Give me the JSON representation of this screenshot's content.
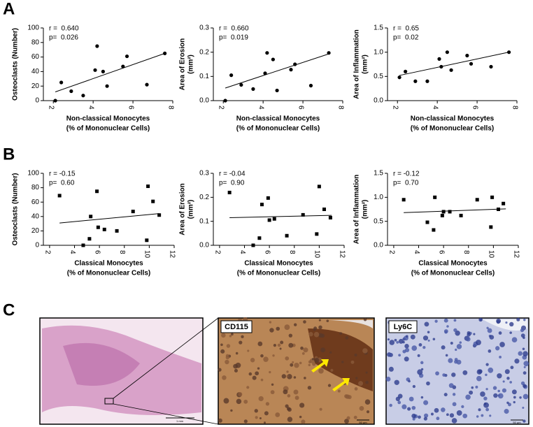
{
  "panels": [
    "A",
    "B",
    "C"
  ],
  "images": {
    "left_scale": "1 mm",
    "middle_label": "CD115",
    "middle_scale": "50 µm",
    "right_label": "Ly6C",
    "right_scale": "50 µm"
  },
  "chart_data": [
    {
      "type": "scatter",
      "marker": "circle",
      "color": "#000000",
      "ylabel": [
        "Osteoclasts (Number)"
      ],
      "xlabel": [
        "Non-classical Monocytes",
        "(% of Mononuclear Cells)"
      ],
      "stats": [
        "r =  0.640",
        "p=  0.026"
      ],
      "x": [
        2.1,
        2.4,
        2.9,
        3.5,
        4.1,
        4.2,
        4.5,
        4.7,
        5.5,
        5.7,
        6.7,
        7.6
      ],
      "values": [
        0,
        25,
        13,
        7,
        42,
        75,
        40,
        20,
        47,
        61,
        22,
        65
      ],
      "fit": {
        "x": [
          2.1,
          7.6
        ],
        "y": [
          12,
          65
        ]
      },
      "xlim": [
        1.5,
        8
      ],
      "xticks": [
        2,
        4,
        6,
        8
      ],
      "ylim": [
        0,
        100
      ],
      "yticks": [
        0,
        20,
        40,
        60,
        80,
        100
      ]
    },
    {
      "type": "scatter",
      "marker": "circle",
      "color": "#000000",
      "ylabel": [
        "Area of Erosion",
        "(mm²)"
      ],
      "xlabel": [
        "Non-classical Monocytes",
        "(% of Mononuclear Cells)"
      ],
      "stats": [
        "r =  0.660",
        "p=  0.019"
      ],
      "x": [
        2.1,
        2.4,
        2.9,
        3.5,
        4.1,
        4.2,
        4.5,
        4.7,
        5.4,
        5.6,
        6.4,
        7.3
      ],
      "values": [
        0,
        0.105,
        0.065,
        0.048,
        0.113,
        0.197,
        0.17,
        0.042,
        0.128,
        0.15,
        0.062,
        0.197
      ],
      "fit": {
        "x": [
          2.1,
          7.3
        ],
        "y": [
          0.052,
          0.193
        ]
      },
      "xlim": [
        1.5,
        8
      ],
      "xticks": [
        2,
        4,
        6,
        8
      ],
      "ylim": [
        0,
        0.3
      ],
      "yticks": [
        {
          "value": 0,
          "label": "0.0"
        },
        0.1,
        0.2,
        0.3
      ]
    },
    {
      "type": "scatter",
      "marker": "circle",
      "color": "#000000",
      "ylabel": [
        "Area of Inflammation",
        "(mm²)"
      ],
      "xlabel": [
        "Non-classical Monocytes",
        "(% of Mononuclear Cells)"
      ],
      "stats": [
        "r =  0.65",
        "p=  0.02"
      ],
      "x": [
        2.1,
        2.4,
        2.9,
        3.5,
        4.1,
        4.2,
        4.5,
        4.7,
        5.5,
        5.7,
        6.7,
        7.6
      ],
      "values": [
        0.48,
        0.6,
        0.4,
        0.4,
        0.86,
        0.7,
        1.0,
        0.63,
        0.93,
        0.76,
        0.7,
        1.0
      ],
      "fit": {
        "x": [
          2.1,
          7.6
        ],
        "y": [
          0.52,
          1.0
        ]
      },
      "xlim": [
        1.5,
        8
      ],
      "xticks": [
        2,
        4,
        6,
        8
      ],
      "ylim": [
        0,
        1.5
      ],
      "yticks": [
        {
          "value": 0,
          "label": "0.0"
        },
        0.5,
        {
          "value": 1,
          "label": "1.0"
        },
        1.5
      ]
    },
    {
      "type": "scatter",
      "marker": "square",
      "color": "#000000",
      "ylabel": [
        "Osteoclasts (Number)"
      ],
      "xlabel": [
        "Classical Monocytes",
        "(% of Mononuclear Cells)"
      ],
      "stats": [
        "r = -0.15",
        "p=  0.60"
      ],
      "x": [
        2.8,
        4.7,
        5.2,
        5.3,
        5.8,
        5.9,
        6.4,
        7.4,
        8.7,
        9.8,
        9.9,
        10.3,
        10.8
      ],
      "values": [
        69,
        0,
        9,
        40,
        75,
        25,
        22,
        20,
        47,
        7,
        82,
        61,
        42
      ],
      "fit": {
        "x": [
          2.8,
          10.8
        ],
        "y": [
          31,
          44
        ]
      },
      "xlim": [
        1.5,
        12
      ],
      "xticks": [
        2,
        4,
        6,
        8,
        10,
        12
      ],
      "ylim": [
        0,
        100
      ],
      "yticks": [
        0,
        20,
        40,
        60,
        80,
        100
      ]
    },
    {
      "type": "scatter",
      "marker": "square",
      "color": "#000000",
      "ylabel": [
        "Area of Erosion",
        "(mm²)"
      ],
      "xlabel": [
        "Classical Monocytes",
        "(% of Mononuclear Cells)"
      ],
      "stats": [
        "r = -0.04",
        "p=  0.90"
      ],
      "x": [
        2.8,
        4.7,
        5.2,
        5.4,
        5.9,
        6.0,
        6.4,
        7.4,
        8.7,
        9.8,
        10.0,
        10.4,
        10.9
      ],
      "values": [
        0.22,
        0,
        0.03,
        0.17,
        0.197,
        0.105,
        0.11,
        0.04,
        0.127,
        0.047,
        0.245,
        0.15,
        0.115
      ],
      "fit": {
        "x": [
          2.8,
          11
        ],
        "y": [
          0.115,
          0.125
        ]
      },
      "xlim": [
        1.5,
        12
      ],
      "xticks": [
        2,
        4,
        6,
        8,
        10,
        12
      ],
      "ylim": [
        0,
        0.3
      ],
      "yticks": [
        {
          "value": 0,
          "label": "0.0"
        },
        0.1,
        0.2,
        0.3
      ]
    },
    {
      "type": "scatter",
      "marker": "square",
      "color": "#000000",
      "ylabel": [
        "Area of Inflammation",
        "(mm²)"
      ],
      "xlabel": [
        "Classical Monocytes",
        "(% of Mononuclear Cells)"
      ],
      "stats": [
        "r = -0.12",
        "p=  0.70"
      ],
      "x": [
        2.8,
        4.7,
        5.2,
        5.3,
        5.9,
        6.0,
        6.5,
        7.4,
        8.7,
        9.8,
        9.9,
        10.4,
        10.8
      ],
      "values": [
        0.95,
        0.48,
        0.32,
        1.0,
        0.62,
        0.7,
        0.7,
        0.62,
        0.95,
        0.38,
        1.0,
        0.75,
        0.87
      ],
      "fit": {
        "x": [
          2.8,
          11
        ],
        "y": [
          0.68,
          0.76
        ]
      },
      "xlim": [
        1.5,
        12
      ],
      "xticks": [
        2,
        4,
        6,
        8,
        10,
        12
      ],
      "ylim": [
        0,
        1.5
      ],
      "yticks": [
        {
          "value": 0,
          "label": "0.0"
        },
        0.5,
        {
          "value": 1,
          "label": "1.0"
        },
        1.5
      ]
    }
  ]
}
